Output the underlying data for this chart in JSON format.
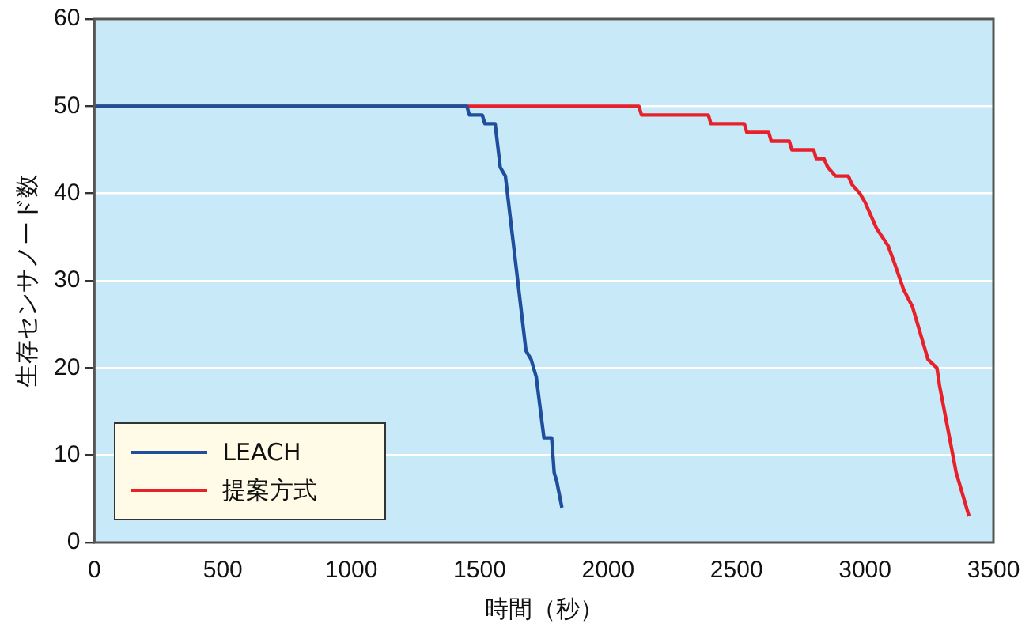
{
  "chart_data": {
    "type": "line",
    "xlabel": "時間（秒）",
    "ylabel": "生存センサノード数",
    "xlim": [
      0,
      3500
    ],
    "xticks": [
      0,
      500,
      1000,
      1500,
      2000,
      2500,
      3000,
      3500
    ],
    "ylim": [
      0,
      60
    ],
    "yticks": [
      0,
      10,
      20,
      30,
      40,
      50,
      60
    ],
    "grid": "y",
    "legend": "bottom left",
    "marker": "none",
    "line_style": "solid",
    "series": [
      {
        "name": "LEACH",
        "color": "#1f4e9c",
        "x": [
          0,
          1450,
          1460,
          1510,
          1520,
          1560,
          1580,
          1600,
          1680,
          1700,
          1720,
          1750,
          1780,
          1790,
          1800,
          1820
        ],
        "values": [
          50,
          50,
          49,
          49,
          48,
          48,
          43,
          42,
          22,
          21,
          19,
          12,
          12,
          8,
          7,
          4
        ]
      },
      {
        "name": "提案方式",
        "color": "#e8202a",
        "x": [
          0,
          2120,
          2130,
          2390,
          2400,
          2530,
          2540,
          2625,
          2635,
          2705,
          2715,
          2800,
          2810,
          2840,
          2855,
          2885,
          2935,
          2950,
          2980,
          3000,
          3045,
          3090,
          3115,
          3150,
          3185,
          3245,
          3280,
          3290,
          3355,
          3405
        ],
        "values": [
          50,
          50,
          49,
          49,
          48,
          48,
          47,
          47,
          46,
          46,
          45,
          45,
          44,
          44,
          43,
          42,
          42,
          41,
          40,
          39,
          36,
          34,
          32,
          29,
          27,
          21,
          20,
          18,
          8,
          3
        ]
      }
    ]
  }
}
